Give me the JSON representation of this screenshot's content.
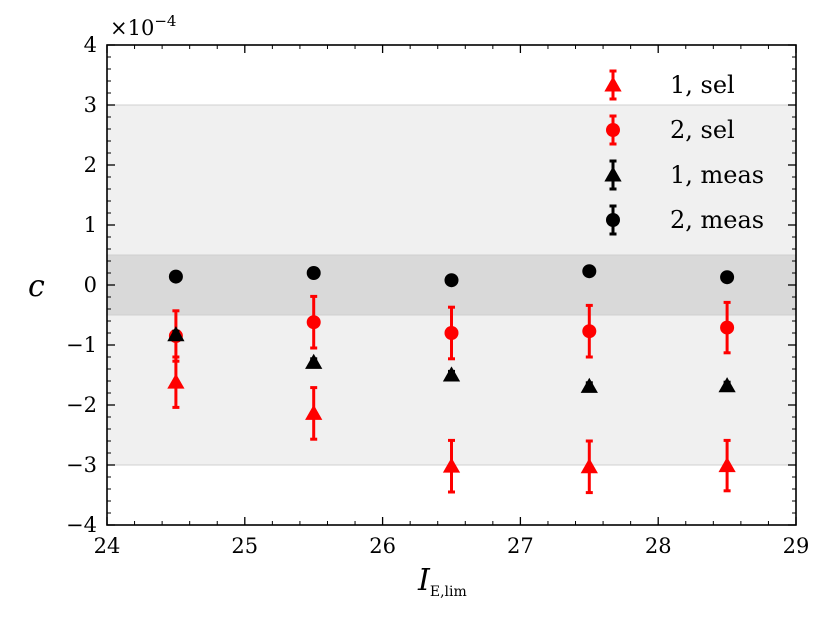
{
  "chart_data": {
    "type": "scatter",
    "xlabel_main": "I",
    "xlabel_sub": "E,lim",
    "ylabel": "c",
    "y_exponent_label": "×10",
    "y_exponent_power": "−4",
    "xlim": [
      24,
      29
    ],
    "ylim": [
      -4,
      4
    ],
    "x_ticks": [
      24,
      25,
      26,
      27,
      28,
      29
    ],
    "x_tick_labels": [
      "24",
      "25",
      "26",
      "27",
      "28",
      "29"
    ],
    "y_ticks": [
      -4,
      -3,
      -2,
      -1,
      0,
      1,
      2,
      3,
      4
    ],
    "y_tick_labels": [
      "−4",
      "−3",
      "−2",
      "−1",
      "0",
      "1",
      "2",
      "3",
      "4"
    ],
    "bands": [
      {
        "y0": -3,
        "y1": 3,
        "color": "#f0f0f0"
      },
      {
        "y0": -0.5,
        "y1": 0.5,
        "color": "#d9d9d9"
      }
    ],
    "legend_position": "top-right",
    "series": [
      {
        "name": "1, sel",
        "marker": "triangle",
        "color": "#ff0000",
        "x": [
          24.5,
          25.5,
          26.5,
          27.5,
          28.5
        ],
        "y": [
          -1.62,
          -2.14,
          -3.02,
          -3.03,
          -3.01
        ],
        "err": [
          0.42,
          0.43,
          0.43,
          0.43,
          0.42
        ]
      },
      {
        "name": "2, sel",
        "marker": "circle",
        "color": "#ff0000",
        "x": [
          24.5,
          25.5,
          26.5,
          27.5,
          28.5
        ],
        "y": [
          -0.85,
          -0.62,
          -0.8,
          -0.77,
          -0.71
        ],
        "err": [
          0.42,
          0.43,
          0.43,
          0.43,
          0.42
        ]
      },
      {
        "name": "1, meas",
        "marker": "triangle",
        "color": "#000000",
        "x": [
          24.5,
          25.5,
          26.5,
          27.5,
          28.5
        ],
        "y": [
          -0.83,
          -1.29,
          -1.5,
          -1.69,
          -1.68
        ],
        "err": [
          0.06,
          0.06,
          0.06,
          0.06,
          0.06
        ]
      },
      {
        "name": "2, meas",
        "marker": "circle",
        "color": "#000000",
        "x": [
          24.5,
          25.5,
          26.5,
          27.5,
          28.5
        ],
        "y": [
          0.14,
          0.2,
          0.08,
          0.23,
          0.13
        ],
        "err": [
          0.05,
          0.05,
          0.05,
          0.05,
          0.05
        ]
      }
    ]
  }
}
